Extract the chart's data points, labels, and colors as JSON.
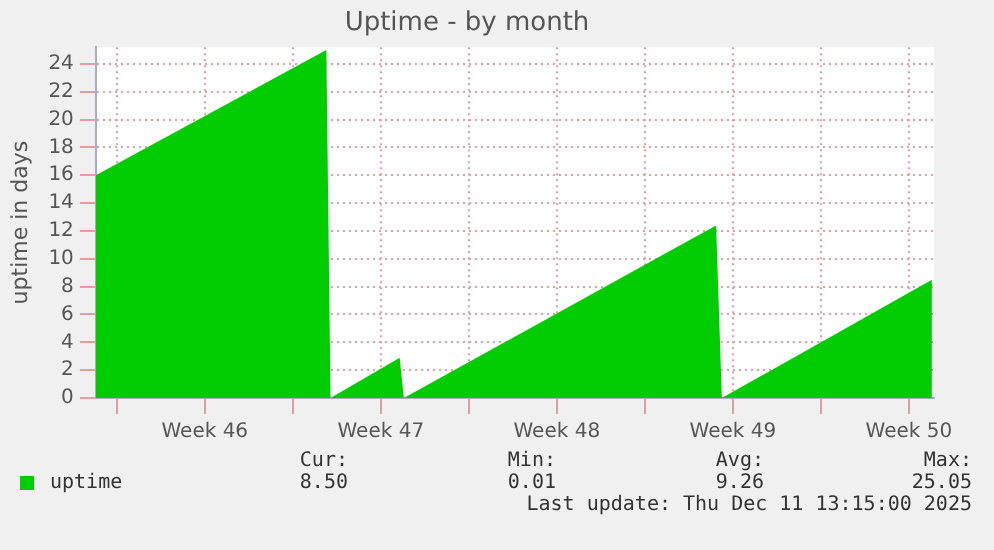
{
  "chart_data": {
    "type": "area",
    "title": "Uptime - by month",
    "ylabel": "uptime in days",
    "series": [
      {
        "name": "uptime",
        "color": "#00cc00",
        "x": [
          "2025-11-09T04:00",
          "2025-11-18T08:00",
          "2025-11-18T12:00",
          "2025-11-21T06:00",
          "2025-11-21T10:00",
          "2025-12-03T20:00",
          "2025-12-04T01:30",
          "2025-12-12T10:00"
        ],
        "values": [
          16,
          25,
          0,
          2.9,
          0,
          12.4,
          0,
          8.5
        ]
      }
    ],
    "xlim": [
      "2025-11-09T04:00",
      "2025-12-12T12:00"
    ],
    "xticks": [
      {
        "value": "2025-11-10",
        "label": null
      },
      {
        "value": "2025-11-13T12:00",
        "label": "Week 46"
      },
      {
        "value": "2025-11-17",
        "label": null
      },
      {
        "value": "2025-11-20T12:00",
        "label": "Week 47"
      },
      {
        "value": "2025-11-24",
        "label": null
      },
      {
        "value": "2025-11-27T12:00",
        "label": "Week 48"
      },
      {
        "value": "2025-12-01",
        "label": null
      },
      {
        "value": "2025-12-04T12:00",
        "label": "Week 49"
      },
      {
        "value": "2025-12-08",
        "label": null
      },
      {
        "value": "2025-12-11T12:00",
        "label": "Week 50"
      }
    ],
    "ylim": [
      0,
      25.2
    ],
    "yticks": [
      0,
      2,
      4,
      6,
      8,
      10,
      12,
      14,
      16,
      18,
      20,
      22,
      24
    ],
    "grid": true,
    "legend": "bottom left",
    "marker": "none",
    "annotations": [
      "Cur:",
      "Min:",
      "Avg:",
      "Max:",
      "8.50",
      "0.01",
      "9.26",
      "25.05",
      "Last update: Thu Dec 11 13:15:00 2025"
    ]
  }
}
